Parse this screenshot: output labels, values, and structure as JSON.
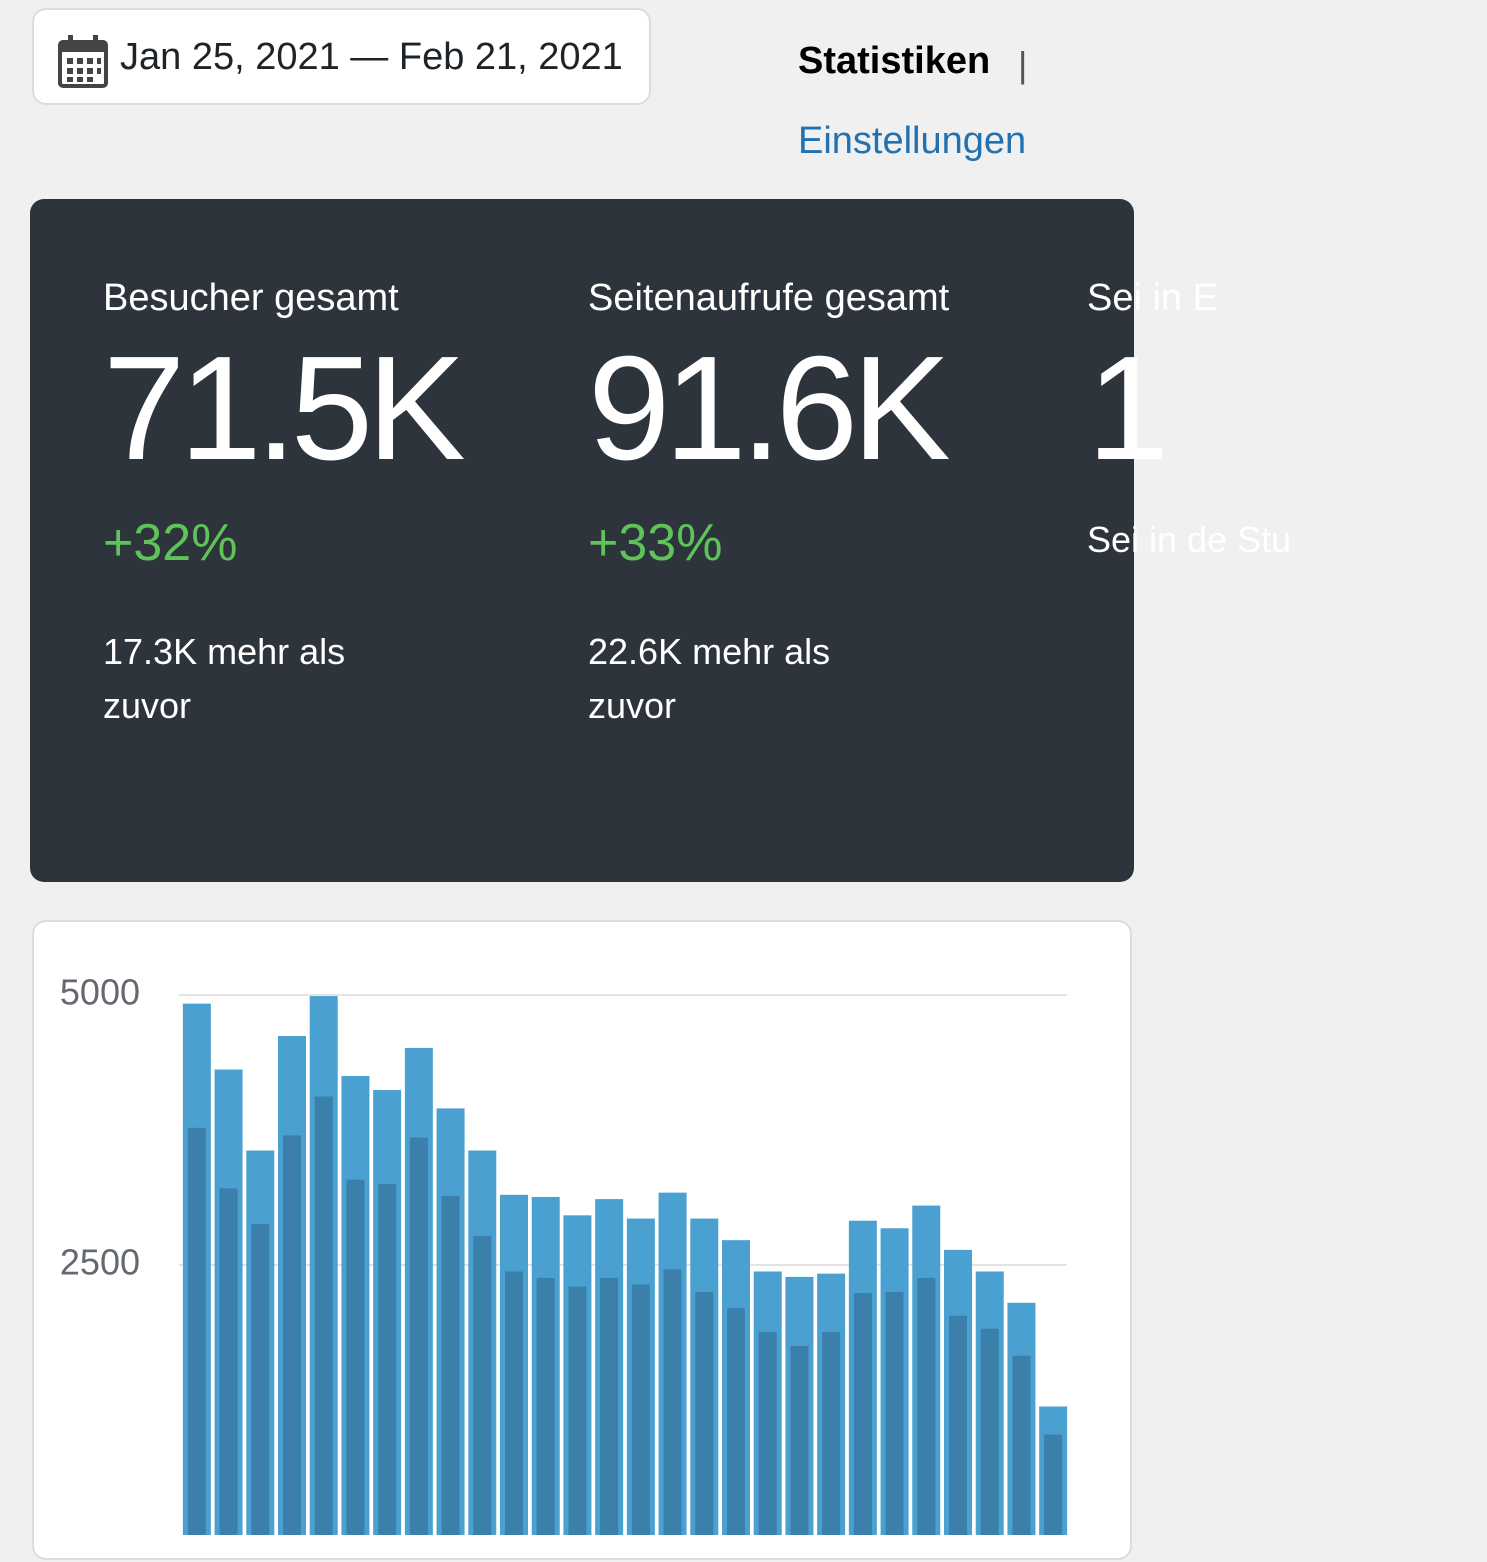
{
  "header": {
    "date_range": "Jan 25, 2021 — Feb 21, 2021",
    "nav_active": "Statistiken",
    "nav_separator": "|",
    "nav_link": "Einstellungen"
  },
  "stats": [
    {
      "label": "Besucher gesamt",
      "value": "71.5K",
      "change": "+32%",
      "note": "17.3K mehr als zuvor"
    },
    {
      "label": "Seitenaufrufe gesamt",
      "value": "91.6K",
      "change": "+33%",
      "note": "22.6K mehr als zuvor"
    },
    {
      "label": "Sei in E",
      "value": "1",
      "note": "Sei in de Stu"
    }
  ],
  "chart_data": {
    "type": "bar",
    "series": [
      {
        "color": "#4aa0d0",
        "values": [
          4920,
          4310,
          3560,
          4620,
          4990,
          4250,
          4120,
          4510,
          3950,
          3560,
          3150,
          3130,
          2960,
          3110,
          2930,
          3170,
          2930,
          2730,
          2440,
          2390,
          2420,
          2910,
          2840,
          3050,
          2640,
          2440,
          2150,
          1190
        ]
      },
      {
        "color": "#3a80aa",
        "values": [
          3770,
          3210,
          2880,
          3700,
          4060,
          3290,
          3250,
          3680,
          3140,
          2770,
          2440,
          2380,
          2300,
          2380,
          2320,
          2460,
          2250,
          2100,
          1880,
          1750,
          1880,
          2240,
          2250,
          2380,
          2030,
          1910,
          1660,
          930
        ]
      }
    ],
    "ylim": [
      0,
      5000
    ],
    "yticks": [
      2500,
      5000
    ],
    "grid": true
  }
}
